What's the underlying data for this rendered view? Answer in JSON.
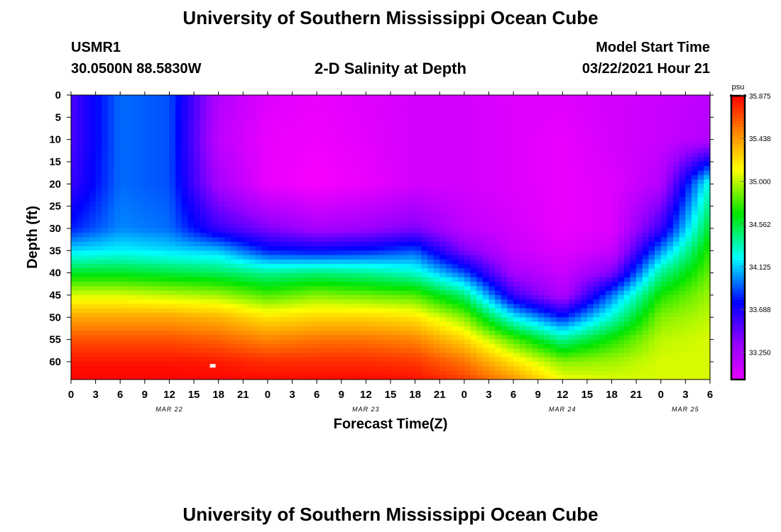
{
  "header": {
    "title": "University of Southern Mississippi Ocean Cube",
    "station_id": "USMR1",
    "station_coords": "30.0500N 88.5830W",
    "plot_title": "2-D Salinity at Depth",
    "model_label": "Model Start Time",
    "model_time": "03/22/2021 Hour 21"
  },
  "footer": {
    "title": "University of Southern Mississippi Ocean Cube"
  },
  "chart_data": {
    "type": "heatmap",
    "title": "2-D Salinity at Depth",
    "xlabel": "Forecast Time(Z)",
    "ylabel": "Depth (ft)",
    "x_ticks": [
      "0",
      "3",
      "6",
      "9",
      "12",
      "15",
      "18",
      "21",
      "0",
      "3",
      "6",
      "9",
      "12",
      "15",
      "18",
      "21",
      "0",
      "3",
      "6",
      "9",
      "12",
      "15",
      "18",
      "21",
      "0",
      "3",
      "6"
    ],
    "y_ticks": [
      "0",
      "5",
      "10",
      "15",
      "20",
      "25",
      "30",
      "35",
      "40",
      "45",
      "50",
      "55",
      "60"
    ],
    "ylim": [
      0,
      64
    ],
    "date_labels": [
      {
        "label": "MAR 22",
        "hour": 12
      },
      {
        "label": "MAR 23",
        "hour": 36
      },
      {
        "label": "MAR 24",
        "hour": 60
      },
      {
        "label": "MAR 25",
        "hour": 75
      }
    ],
    "colorbar": {
      "unit": "psu",
      "vmin": 32.85,
      "vmax": 35.875,
      "ticks": [
        "35.875",
        "35.438",
        "35.000",
        "34.562",
        "34.125",
        "33.688",
        "33.250"
      ]
    },
    "hours": [
      0,
      6,
      12,
      18,
      24,
      30,
      36,
      42,
      48,
      54,
      60,
      66,
      72,
      78
    ],
    "depths": [
      0,
      10,
      20,
      30,
      35,
      40,
      45,
      50,
      55,
      60,
      64
    ],
    "values": [
      [
        33.55,
        33.55,
        33.6,
        33.8,
        34.15,
        34.6,
        35.05,
        35.4,
        35.65,
        35.82,
        35.87
      ],
      [
        33.95,
        33.95,
        33.95,
        34.0,
        34.2,
        34.6,
        35.05,
        35.4,
        35.65,
        35.82,
        35.87
      ],
      [
        33.9,
        33.9,
        33.9,
        33.95,
        34.15,
        34.55,
        35.0,
        35.4,
        35.65,
        35.82,
        35.87
      ],
      [
        33.2,
        33.15,
        33.25,
        33.6,
        34.1,
        34.5,
        34.95,
        35.35,
        35.6,
        35.8,
        35.86
      ],
      [
        33.0,
        32.95,
        32.95,
        33.4,
        33.8,
        34.4,
        34.8,
        35.2,
        35.5,
        35.75,
        35.85
      ],
      [
        32.95,
        32.92,
        32.88,
        33.25,
        33.75,
        34.45,
        34.9,
        35.25,
        35.55,
        35.75,
        35.85
      ],
      [
        33.0,
        32.98,
        32.95,
        33.3,
        33.8,
        34.4,
        34.85,
        35.25,
        35.55,
        35.75,
        35.85
      ],
      [
        33.05,
        33.05,
        33.05,
        33.4,
        33.9,
        34.3,
        34.8,
        35.2,
        35.5,
        35.72,
        35.83
      ],
      [
        33.05,
        33.05,
        33.05,
        33.15,
        33.4,
        33.9,
        34.45,
        34.9,
        35.25,
        35.55,
        35.7
      ],
      [
        33.0,
        33.0,
        33.0,
        33.05,
        33.1,
        33.25,
        33.6,
        34.2,
        34.8,
        35.2,
        35.45
      ],
      [
        33.0,
        32.95,
        32.95,
        32.95,
        33.0,
        33.1,
        33.2,
        33.8,
        34.4,
        34.9,
        35.1
      ],
      [
        33.05,
        33.05,
        33.0,
        33.0,
        33.1,
        33.4,
        33.95,
        34.3,
        34.7,
        34.95,
        35.05
      ],
      [
        33.1,
        33.1,
        33.2,
        33.6,
        34.0,
        34.4,
        34.7,
        34.9,
        35.0,
        35.05,
        35.05
      ],
      [
        33.15,
        33.2,
        34.3,
        34.6,
        34.75,
        34.85,
        34.95,
        35.0,
        35.05,
        35.05,
        35.05
      ]
    ],
    "marker": {
      "hour": 17.3,
      "depth": 61
    }
  }
}
